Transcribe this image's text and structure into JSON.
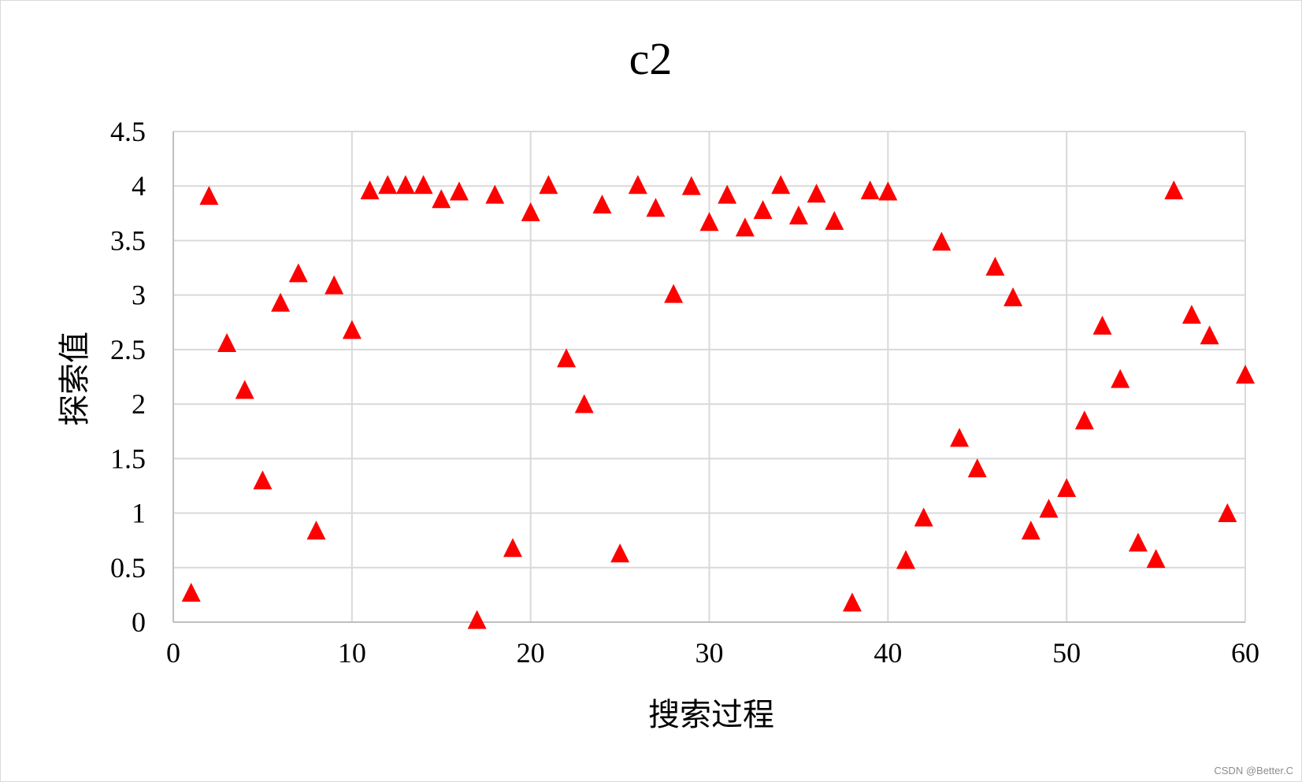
{
  "watermark": "CSDN @Better.C",
  "colors": {
    "marker": "#ff0000",
    "grid": "#d9d9d9",
    "axis": "#bfbfbf",
    "text": "#000000"
  },
  "chart_data": {
    "type": "scatter",
    "title": "c2",
    "xlabel": "搜索过程",
    "ylabel": "探索值",
    "xlim": [
      0,
      60
    ],
    "ylim": [
      0,
      4.5
    ],
    "x_ticks": [
      "0",
      "10",
      "20",
      "30",
      "40",
      "50",
      "60"
    ],
    "y_ticks": [
      "0",
      "0.5",
      "1",
      "1.5",
      "2",
      "2.5",
      "3",
      "3.5",
      "4",
      "4.5"
    ],
    "grid": true,
    "legend": "none",
    "marker": "triangle",
    "series": [
      {
        "x": [
          1,
          2,
          3,
          4,
          5,
          6,
          7,
          8,
          9,
          10,
          11,
          12,
          13,
          14,
          15,
          16,
          17,
          18,
          19,
          20,
          21,
          22,
          23,
          24,
          25,
          26,
          27,
          28,
          29,
          30,
          31,
          32,
          33,
          34,
          35,
          36,
          37,
          38,
          39,
          40,
          41,
          42,
          43,
          44,
          45,
          46,
          47,
          48,
          49,
          50,
          51,
          52,
          53,
          54,
          55,
          56,
          57,
          58,
          59,
          60
        ],
        "y": [
          0.26,
          3.9,
          2.55,
          2.12,
          1.29,
          2.92,
          3.19,
          0.83,
          3.08,
          2.67,
          3.95,
          4.0,
          4.0,
          4.0,
          3.87,
          3.94,
          0.01,
          3.91,
          0.67,
          3.75,
          4.0,
          2.41,
          1.99,
          3.82,
          0.62,
          4.0,
          3.79,
          3.0,
          3.99,
          3.66,
          3.91,
          3.61,
          3.77,
          4.0,
          3.72,
          3.92,
          3.67,
          0.17,
          3.95,
          3.94,
          0.56,
          0.95,
          3.48,
          1.68,
          1.4,
          3.25,
          2.97,
          0.83,
          1.03,
          1.22,
          1.84,
          2.71,
          2.22,
          0.72,
          0.57,
          3.95,
          2.81,
          2.62,
          0.99,
          2.26
        ]
      }
    ]
  }
}
